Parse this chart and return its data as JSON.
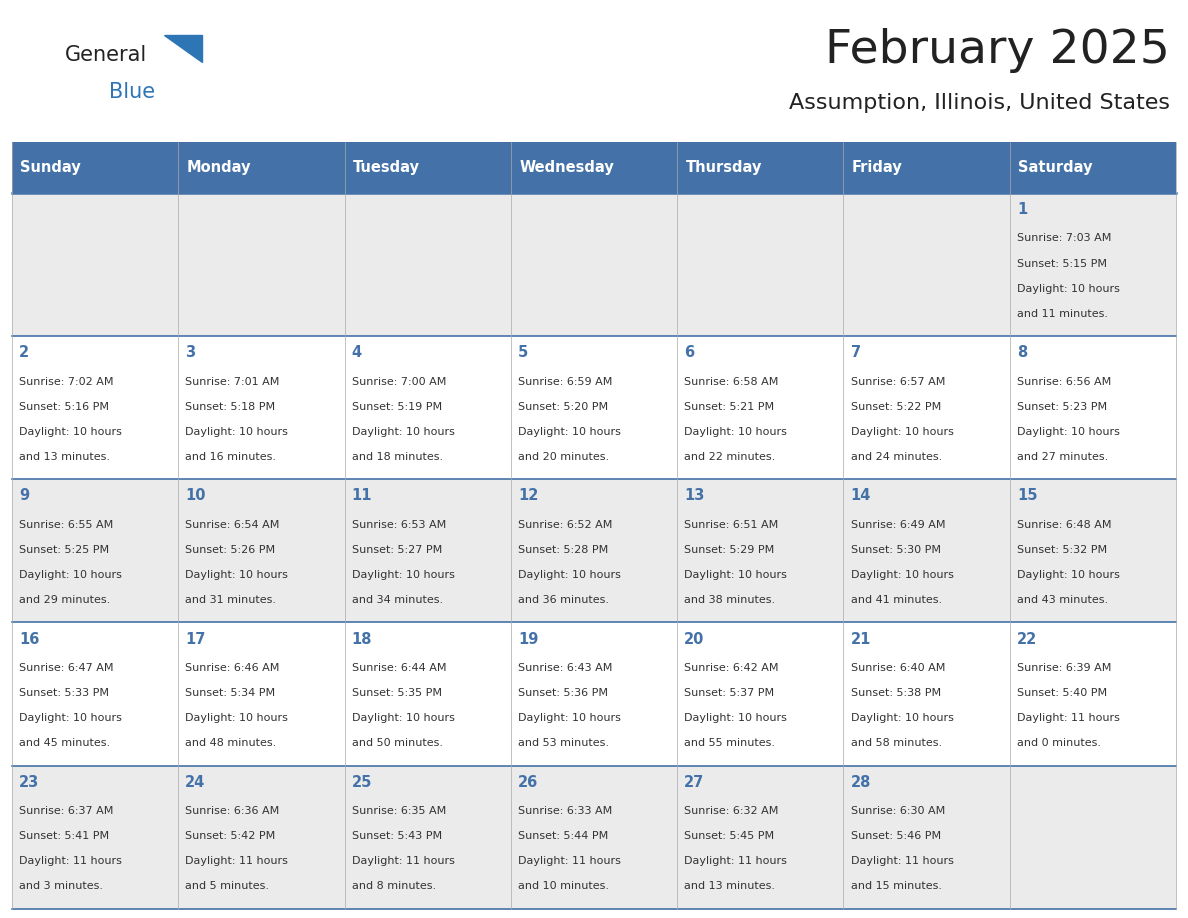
{
  "title": "February 2025",
  "subtitle": "Assumption, Illinois, United States",
  "header_color": "#4472A8",
  "header_text_color": "#FFFFFF",
  "grid_line_color": "#4472A8",
  "day_headers": [
    "Sunday",
    "Monday",
    "Tuesday",
    "Wednesday",
    "Thursday",
    "Friday",
    "Saturday"
  ],
  "bg_color": "#FFFFFF",
  "cell_bg_even": "#EBEBEB",
  "cell_bg_odd": "#FFFFFF",
  "day_num_color": "#4472A8",
  "text_color": "#333333",
  "logo_general_color": "#222222",
  "logo_blue_color": "#2E75B6",
  "days": [
    {
      "day": 1,
      "col": 6,
      "row": 0,
      "sunrise": "7:03 AM",
      "sunset": "5:15 PM",
      "daylight": "10 hours and 11 minutes."
    },
    {
      "day": 2,
      "col": 0,
      "row": 1,
      "sunrise": "7:02 AM",
      "sunset": "5:16 PM",
      "daylight": "10 hours and 13 minutes."
    },
    {
      "day": 3,
      "col": 1,
      "row": 1,
      "sunrise": "7:01 AM",
      "sunset": "5:18 PM",
      "daylight": "10 hours and 16 minutes."
    },
    {
      "day": 4,
      "col": 2,
      "row": 1,
      "sunrise": "7:00 AM",
      "sunset": "5:19 PM",
      "daylight": "10 hours and 18 minutes."
    },
    {
      "day": 5,
      "col": 3,
      "row": 1,
      "sunrise": "6:59 AM",
      "sunset": "5:20 PM",
      "daylight": "10 hours and 20 minutes."
    },
    {
      "day": 6,
      "col": 4,
      "row": 1,
      "sunrise": "6:58 AM",
      "sunset": "5:21 PM",
      "daylight": "10 hours and 22 minutes."
    },
    {
      "day": 7,
      "col": 5,
      "row": 1,
      "sunrise": "6:57 AM",
      "sunset": "5:22 PM",
      "daylight": "10 hours and 24 minutes."
    },
    {
      "day": 8,
      "col": 6,
      "row": 1,
      "sunrise": "6:56 AM",
      "sunset": "5:23 PM",
      "daylight": "10 hours and 27 minutes."
    },
    {
      "day": 9,
      "col": 0,
      "row": 2,
      "sunrise": "6:55 AM",
      "sunset": "5:25 PM",
      "daylight": "10 hours and 29 minutes."
    },
    {
      "day": 10,
      "col": 1,
      "row": 2,
      "sunrise": "6:54 AM",
      "sunset": "5:26 PM",
      "daylight": "10 hours and 31 minutes."
    },
    {
      "day": 11,
      "col": 2,
      "row": 2,
      "sunrise": "6:53 AM",
      "sunset": "5:27 PM",
      "daylight": "10 hours and 34 minutes."
    },
    {
      "day": 12,
      "col": 3,
      "row": 2,
      "sunrise": "6:52 AM",
      "sunset": "5:28 PM",
      "daylight": "10 hours and 36 minutes."
    },
    {
      "day": 13,
      "col": 4,
      "row": 2,
      "sunrise": "6:51 AM",
      "sunset": "5:29 PM",
      "daylight": "10 hours and 38 minutes."
    },
    {
      "day": 14,
      "col": 5,
      "row": 2,
      "sunrise": "6:49 AM",
      "sunset": "5:30 PM",
      "daylight": "10 hours and 41 minutes."
    },
    {
      "day": 15,
      "col": 6,
      "row": 2,
      "sunrise": "6:48 AM",
      "sunset": "5:32 PM",
      "daylight": "10 hours and 43 minutes."
    },
    {
      "day": 16,
      "col": 0,
      "row": 3,
      "sunrise": "6:47 AM",
      "sunset": "5:33 PM",
      "daylight": "10 hours and 45 minutes."
    },
    {
      "day": 17,
      "col": 1,
      "row": 3,
      "sunrise": "6:46 AM",
      "sunset": "5:34 PM",
      "daylight": "10 hours and 48 minutes."
    },
    {
      "day": 18,
      "col": 2,
      "row": 3,
      "sunrise": "6:44 AM",
      "sunset": "5:35 PM",
      "daylight": "10 hours and 50 minutes."
    },
    {
      "day": 19,
      "col": 3,
      "row": 3,
      "sunrise": "6:43 AM",
      "sunset": "5:36 PM",
      "daylight": "10 hours and 53 minutes."
    },
    {
      "day": 20,
      "col": 4,
      "row": 3,
      "sunrise": "6:42 AM",
      "sunset": "5:37 PM",
      "daylight": "10 hours and 55 minutes."
    },
    {
      "day": 21,
      "col": 5,
      "row": 3,
      "sunrise": "6:40 AM",
      "sunset": "5:38 PM",
      "daylight": "10 hours and 58 minutes."
    },
    {
      "day": 22,
      "col": 6,
      "row": 3,
      "sunrise": "6:39 AM",
      "sunset": "5:40 PM",
      "daylight": "11 hours and 0 minutes."
    },
    {
      "day": 23,
      "col": 0,
      "row": 4,
      "sunrise": "6:37 AM",
      "sunset": "5:41 PM",
      "daylight": "11 hours and 3 minutes."
    },
    {
      "day": 24,
      "col": 1,
      "row": 4,
      "sunrise": "6:36 AM",
      "sunset": "5:42 PM",
      "daylight": "11 hours and 5 minutes."
    },
    {
      "day": 25,
      "col": 2,
      "row": 4,
      "sunrise": "6:35 AM",
      "sunset": "5:43 PM",
      "daylight": "11 hours and 8 minutes."
    },
    {
      "day": 26,
      "col": 3,
      "row": 4,
      "sunrise": "6:33 AM",
      "sunset": "5:44 PM",
      "daylight": "11 hours and 10 minutes."
    },
    {
      "day": 27,
      "col": 4,
      "row": 4,
      "sunrise": "6:32 AM",
      "sunset": "5:45 PM",
      "daylight": "11 hours and 13 minutes."
    },
    {
      "day": 28,
      "col": 5,
      "row": 4,
      "sunrise": "6:30 AM",
      "sunset": "5:46 PM",
      "daylight": "11 hours and 15 minutes."
    }
  ]
}
